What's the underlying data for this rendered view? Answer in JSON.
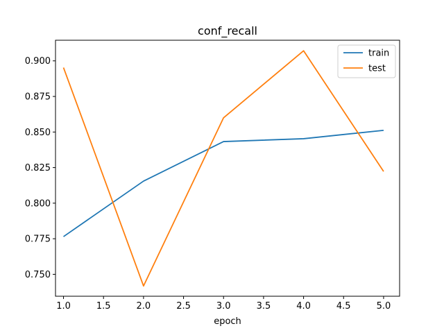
{
  "chart_data": {
    "type": "line",
    "title": "conf_recall",
    "xlabel": "epoch",
    "ylabel": "",
    "x": [
      1.0,
      2.0,
      3.0,
      4.0,
      5.0
    ],
    "xlim": [
      0.9,
      5.2
    ],
    "ylim": [
      0.7346,
      0.9145
    ],
    "xticks": [
      "1.0",
      "1.5",
      "2.0",
      "2.5",
      "3.0",
      "3.5",
      "4.0",
      "4.5",
      "5.0"
    ],
    "yticks": [
      "0.750",
      "0.775",
      "0.800",
      "0.825",
      "0.850",
      "0.875",
      "0.900"
    ],
    "legend_position": "top-right",
    "grid": false,
    "series": [
      {
        "name": "train",
        "color": "#1f77b4",
        "values": [
          0.7765,
          0.8155,
          0.8433,
          0.8453,
          0.8512
        ]
      },
      {
        "name": "test",
        "color": "#ff7f0e",
        "values": [
          0.8953,
          0.7418,
          0.86,
          0.9071,
          0.8223
        ]
      }
    ]
  }
}
